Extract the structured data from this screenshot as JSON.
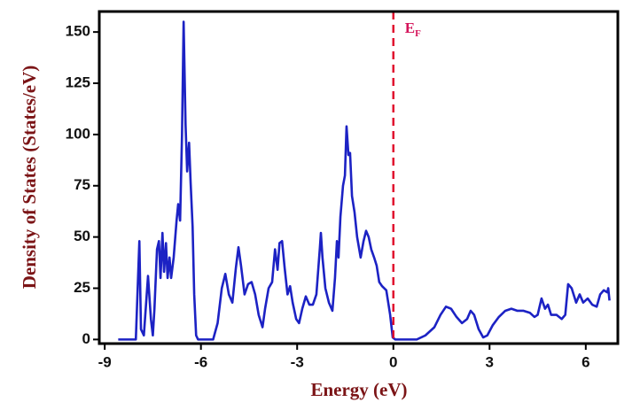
{
  "chart_data": {
    "type": "line",
    "x_label": "Energy (eV)",
    "y_label": "Density of States (States/eV)",
    "fermi_level": 0,
    "fermi_label": "E",
    "fermi_label_sub": "F",
    "fermi_color": "#e0102f",
    "xlim": [
      -9.17,
      7.0
    ],
    "xticks": [
      -9,
      -6,
      -3,
      0,
      3,
      6
    ],
    "ylim": [
      -2,
      160
    ],
    "yticks": [
      0,
      25,
      50,
      75,
      100,
      125,
      150
    ],
    "series": [
      {
        "color": "#1c22c4",
        "x": [
          -8.58,
          -8.03,
          -7.92,
          -7.87,
          -7.78,
          -7.65,
          -7.56,
          -7.5,
          -7.45,
          -7.37,
          -7.31,
          -7.26,
          -7.2,
          -7.15,
          -7.09,
          -7.04,
          -6.98,
          -6.93,
          -6.85,
          -6.76,
          -6.71,
          -6.65,
          -6.59,
          -6.54,
          -6.48,
          -6.43,
          -6.37,
          -6.32,
          -6.26,
          -6.21,
          -6.15,
          -6.09,
          -5.62,
          -5.48,
          -5.35,
          -5.24,
          -5.13,
          -5.02,
          -4.91,
          -4.83,
          -4.75,
          -4.64,
          -4.53,
          -4.42,
          -4.31,
          -4.2,
          -4.08,
          -4.0,
          -3.89,
          -3.78,
          -3.69,
          -3.61,
          -3.55,
          -3.47,
          -3.39,
          -3.3,
          -3.22,
          -3.14,
          -3.03,
          -2.94,
          -2.84,
          -2.73,
          -2.62,
          -2.51,
          -2.4,
          -2.29,
          -2.26,
          -2.21,
          -2.12,
          -2.01,
          -1.9,
          -1.82,
          -1.76,
          -1.71,
          -1.65,
          -1.57,
          -1.51,
          -1.46,
          -1.4,
          -1.35,
          -1.29,
          -1.21,
          -1.13,
          -1.02,
          -0.93,
          -0.85,
          -0.77,
          -0.69,
          -0.6,
          -0.52,
          -0.44,
          -0.35,
          -0.22,
          -0.1,
          -0.02,
          0.06,
          0.73,
          1.0,
          1.28,
          1.47,
          1.64,
          1.8,
          1.97,
          2.14,
          2.3,
          2.41,
          2.52,
          2.66,
          2.8,
          2.93,
          3.1,
          3.29,
          3.49,
          3.68,
          3.87,
          4.06,
          4.26,
          4.4,
          4.5,
          4.62,
          4.73,
          4.82,
          4.92,
          5.09,
          5.25,
          5.36,
          5.45,
          5.56,
          5.7,
          5.81,
          5.92,
          6.06,
          6.2,
          6.34,
          6.45,
          6.56,
          6.67,
          6.7,
          6.74
        ],
        "values": [
          0,
          0,
          48,
          5,
          2,
          31,
          10,
          2,
          15,
          44,
          48,
          30,
          52,
          33,
          47,
          30,
          40,
          30,
          40,
          58,
          66,
          58,
          100,
          155,
          105,
          82,
          96,
          76,
          55,
          22,
          2,
          0,
          0,
          8,
          25,
          32,
          22,
          18,
          35,
          45,
          36,
          22,
          27,
          28,
          22,
          12,
          6,
          15,
          25,
          28,
          44,
          34,
          47,
          48,
          35,
          22,
          26,
          18,
          10,
          8,
          15,
          21,
          17,
          17,
          22,
          45,
          52,
          40,
          25,
          18,
          14,
          30,
          48,
          40,
          60,
          75,
          80,
          104,
          90,
          91,
          70,
          62,
          50,
          40,
          48,
          53,
          50,
          44,
          40,
          36,
          28,
          26,
          24,
          12,
          1,
          0,
          0,
          2,
          6,
          12,
          16,
          15,
          11,
          8,
          10,
          14,
          12,
          5,
          1,
          2,
          7,
          11,
          14,
          15,
          14,
          14,
          13,
          11,
          12,
          20,
          15,
          17,
          12,
          12,
          10,
          12,
          27,
          25,
          18,
          22,
          18,
          20,
          17,
          16,
          22,
          24,
          23,
          25,
          19
        ]
      }
    ]
  }
}
